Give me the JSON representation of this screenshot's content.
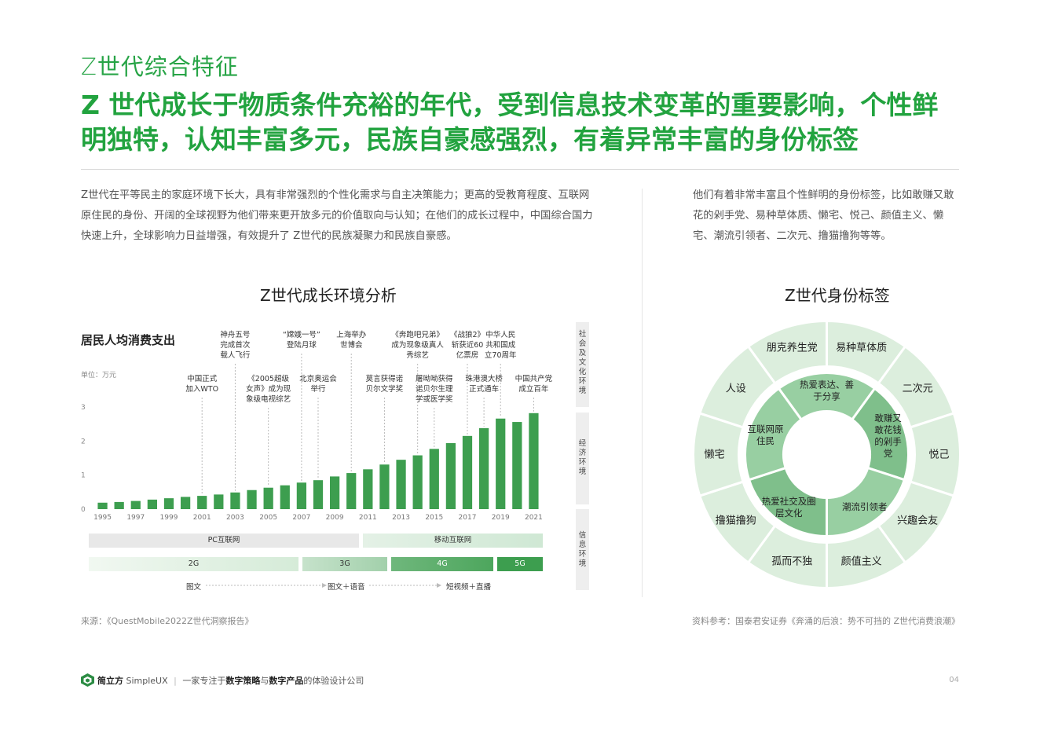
{
  "header": {
    "section_title": "Z世代综合特征",
    "headline": "Z 世代成长于物质条件充裕的年代，受到信息技术变革的重要影响，个性鲜明独特，认知丰富多元，民族自豪感强烈，有着异常丰富的身份标签"
  },
  "intro": {
    "left": "Z世代在平等民主的家庭环境下长大，具有非常强烈的个性化需求与自主决策能力；更高的受教育程度、互联网原住民的身份、开阔的全球视野为他们带来更开放多元的价值取向与认知；在他们的成长过程中，中国综合国力快速上升，全球影响力日益增强，有效提升了 Z世代的民族凝聚力和民族自豪感。",
    "right": "他们有着非常丰富且个性鲜明的身份标签，比如敢赚又敢花的剁手党、易种草体质、懒宅、悦己、颜值主义、懒宅、潮流引领者、二次元、撸猫撸狗等等。"
  },
  "left_panel": {
    "title": "Z世代成长环境分析",
    "chart_title": "居民人均消费支出",
    "unit": "单位：万元",
    "side_labels": [
      "社会及文化环境",
      "经济环境",
      "信息环境"
    ],
    "events": [
      {
        "year": 2001,
        "text": [
          "中国正式",
          "加入WTO"
        ]
      },
      {
        "year": 2003,
        "text": [
          "神舟五号",
          "完成首次",
          "载人飞行"
        ]
      },
      {
        "year": 2005,
        "text": [
          "《2005超级",
          "女声》成为现",
          "象级电视综艺"
        ]
      },
      {
        "year": 2007,
        "text": [
          "“嫦娥一号”",
          "登陆月球"
        ]
      },
      {
        "year": 2008,
        "text": [
          "北京奥运会",
          "举行"
        ]
      },
      {
        "year": 2010,
        "text": [
          "上海举办",
          "世博会"
        ]
      },
      {
        "year": 2012,
        "text": [
          "莫言获得诺",
          "贝尔文学奖"
        ]
      },
      {
        "year": 2014,
        "text": [
          "《奔跑吧兄弟》",
          "成为现象级真人",
          "秀综艺"
        ]
      },
      {
        "year": 2015,
        "text": [
          "屠呦呦获得",
          "诺贝尔生理",
          "学或医学奖"
        ]
      },
      {
        "year": 2017,
        "text": [
          "《战狼2》",
          "斩获近60",
          "亿票房"
        ]
      },
      {
        "year": 2018,
        "text": [
          "珠港澳大桥",
          "正式通车"
        ]
      },
      {
        "year": 2019,
        "text": [
          "中华人民",
          "共和国成",
          "立70周年"
        ]
      },
      {
        "year": 2021,
        "text": [
          "中国共产党",
          "成立百年"
        ]
      }
    ],
    "internet_bands": [
      "PC互联网",
      "移动互联网"
    ],
    "network_bands": [
      "2G",
      "3G",
      "4G",
      "5G"
    ],
    "content_stages": [
      "图文",
      "图文＋语音",
      "短视频＋直播"
    ]
  },
  "chart_data": {
    "type": "bar",
    "title": "居民人均消费支出",
    "ylabel": "单位：万元",
    "ylim": [
      0,
      3
    ],
    "yticks": [
      "0",
      "1",
      "2",
      "3"
    ],
    "x_tick_labels": [
      "1995",
      "1997",
      "1999",
      "2001",
      "2003",
      "2005",
      "2007",
      "2009",
      "2011",
      "2013",
      "2015",
      "2017",
      "2019",
      "2021"
    ],
    "categories": [
      "1995",
      "1996",
      "1997",
      "1998",
      "1999",
      "2000",
      "2001",
      "2002",
      "2003",
      "2004",
      "2005",
      "2006",
      "2007",
      "2008",
      "2009",
      "2010",
      "2011",
      "2012",
      "2013",
      "2014",
      "2015",
      "2016",
      "2017",
      "2018",
      "2019",
      "2020",
      "2021"
    ],
    "values": [
      0.19,
      0.21,
      0.24,
      0.28,
      0.32,
      0.36,
      0.39,
      0.43,
      0.49,
      0.56,
      0.63,
      0.7,
      0.78,
      0.85,
      0.96,
      1.06,
      1.17,
      1.31,
      1.45,
      1.58,
      1.77,
      1.94,
      2.15,
      2.38,
      2.66,
      2.56,
      2.82
    ],
    "color": "#3d9e4f"
  },
  "right_panel": {
    "title": "Z世代身份标签",
    "outer_ring": [
      "朋克养生党",
      "易种草体质",
      "二次元",
      "悦己",
      "兴趣会友",
      "颜值主义",
      "孤而不独",
      "撸猫撸狗",
      "懒宅",
      "人设"
    ],
    "inner_ring": [
      "热爱表达、善于分享",
      "敢赚又敢花钱的剁手党",
      "潮流引领者",
      "热爱社交及圈层文化",
      "互联网原住民"
    ]
  },
  "footer": {
    "source_left": "来源：《QuestMobile2022Z世代洞察报告》",
    "source_right": "资料参考：国泰君安证券《奔涌的后浪：势不可挡的 Z世代消费浪潮》",
    "brand": "简立方",
    "brand_en": "SimpleUX",
    "divider": "|",
    "tagline_1": "一家专注于",
    "tagline_bold_1": "数字策略",
    "tagline_2": "与",
    "tagline_bold_2": "数字产品",
    "tagline_3": "的体验设计公司",
    "page_number": "04"
  },
  "colors": {
    "brand_green": "#22a33f",
    "bar_green": "#3d9e4f",
    "ring_outer": "#dceedd",
    "ring_inner": "#8fc79a"
  }
}
